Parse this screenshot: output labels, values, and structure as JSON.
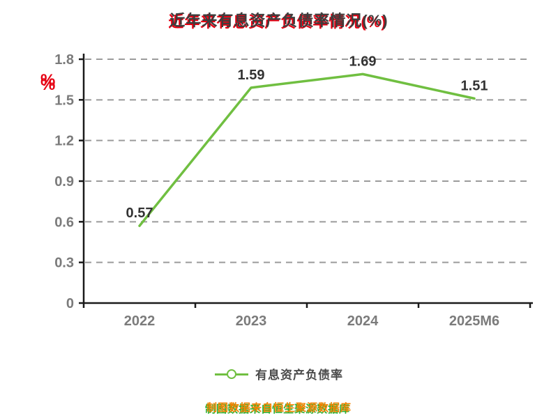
{
  "chart_data": {
    "type": "line",
    "title": "近年来有息资产负债率情况(%)",
    "categories": [
      "2022",
      "2023",
      "2024",
      "2025M6"
    ],
    "values": [
      0.57,
      1.59,
      1.69,
      1.51
    ],
    "value_labels": [
      "0.57",
      "1.59",
      "1.69",
      "1.51"
    ],
    "ylabel": "%",
    "ylim": [
      0,
      1.8
    ],
    "yticks": [
      0,
      0.3,
      0.6,
      0.9,
      1.2,
      1.5,
      1.8
    ],
    "grid": "horizontal-dashed",
    "legend": {
      "label": "有息资产负债率",
      "position": "bottom"
    },
    "colors": {
      "line_green": "#70bf41",
      "label_red": "#e60012",
      "source_orange": "#f08300",
      "source_green": "#2eb135",
      "grid_gray": "#9b9b9b",
      "axis_black": "#1a1a1a",
      "tick_gray": "#7b7b7b",
      "value_dark": "#333333",
      "title_dark": "#3d3d3d"
    }
  },
  "footer": {
    "source_text": "制图数据来自恒生聚源数据库"
  }
}
